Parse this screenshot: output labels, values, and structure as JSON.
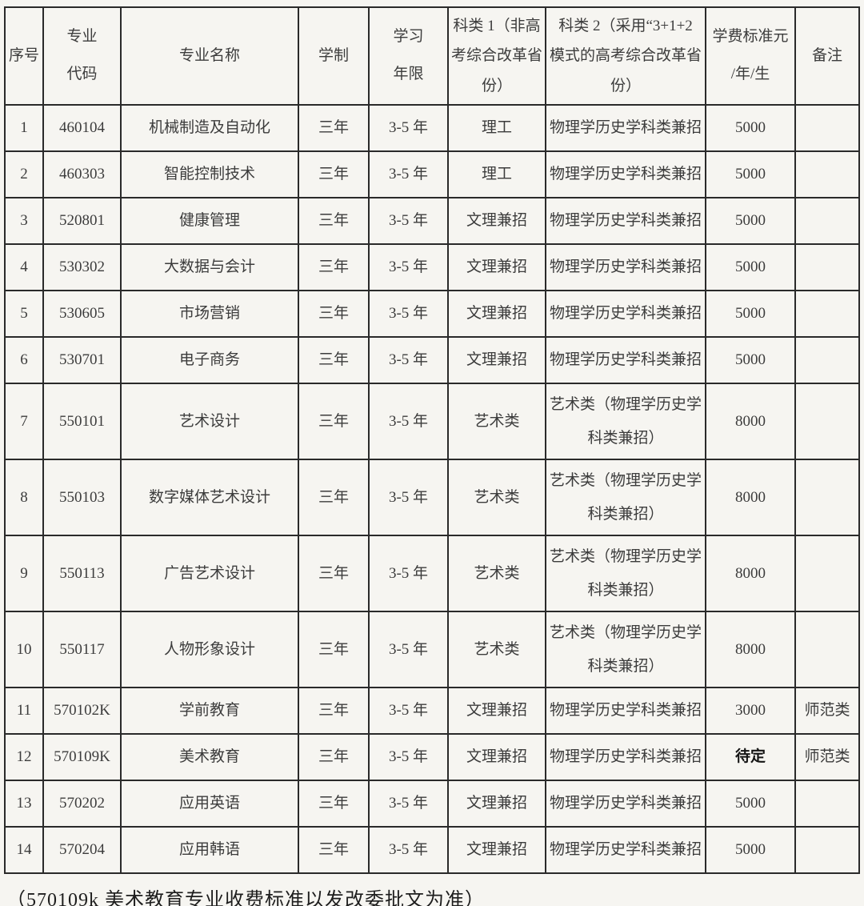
{
  "page": {
    "background": "#f6f5f1",
    "ink_color": "#2a2a2a",
    "text_color": "#3c3c3c",
    "footer_note": "（570109k 美术教育专业收费标准以发改委批文为准）"
  },
  "table": {
    "columns": [
      {
        "key": "index",
        "label": "序号"
      },
      {
        "key": "code",
        "label": "专业\n代码"
      },
      {
        "key": "name",
        "label": "专业名称"
      },
      {
        "key": "duration",
        "label": "学制"
      },
      {
        "key": "years",
        "label": "学习\n年限"
      },
      {
        "key": "category1",
        "label": "科类 1（非高\n考综合改革省\n份）"
      },
      {
        "key": "category2",
        "label": "科类 2（采用“3+1+2\n模式的高考综合改革省\n份）"
      },
      {
        "key": "fee",
        "label": "学费标准元\n/年/生"
      },
      {
        "key": "remark",
        "label": "备注"
      }
    ],
    "rows": [
      {
        "index": "1",
        "code": "460104",
        "name": "机械制造及自动化",
        "duration": "三年",
        "years": "3-5 年",
        "category1": "理工",
        "category2": "物理学历史学科类兼招",
        "fee": "5000",
        "remark": ""
      },
      {
        "index": "2",
        "code": "460303",
        "name": "智能控制技术",
        "duration": "三年",
        "years": "3-5 年",
        "category1": "理工",
        "category2": "物理学历史学科类兼招",
        "fee": "5000",
        "remark": ""
      },
      {
        "index": "3",
        "code": "520801",
        "name": "健康管理",
        "duration": "三年",
        "years": "3-5 年",
        "category1": "文理兼招",
        "category2": "物理学历史学科类兼招",
        "fee": "5000",
        "remark": ""
      },
      {
        "index": "4",
        "code": "530302",
        "name": "大数据与会计",
        "duration": "三年",
        "years": "3-5 年",
        "category1": "文理兼招",
        "category2": "物理学历史学科类兼招",
        "fee": "5000",
        "remark": ""
      },
      {
        "index": "5",
        "code": "530605",
        "name": "市场营销",
        "duration": "三年",
        "years": "3-5 年",
        "category1": "文理兼招",
        "category2": "物理学历史学科类兼招",
        "fee": "5000",
        "remark": ""
      },
      {
        "index": "6",
        "code": "530701",
        "name": "电子商务",
        "duration": "三年",
        "years": "3-5 年",
        "category1": "文理兼招",
        "category2": "物理学历史学科类兼招",
        "fee": "5000",
        "remark": ""
      },
      {
        "index": "7",
        "code": "550101",
        "name": "艺术设计",
        "duration": "三年",
        "years": "3-5 年",
        "category1": "艺术类",
        "category2": "艺术类（物理学历史学\n科类兼招）",
        "fee": "8000",
        "remark": ""
      },
      {
        "index": "8",
        "code": "550103",
        "name": "数字媒体艺术设计",
        "duration": "三年",
        "years": "3-5 年",
        "category1": "艺术类",
        "category2": "艺术类（物理学历史学\n科类兼招）",
        "fee": "8000",
        "remark": ""
      },
      {
        "index": "9",
        "code": "550113",
        "name": "广告艺术设计",
        "duration": "三年",
        "years": "3-5 年",
        "category1": "艺术类",
        "category2": "艺术类（物理学历史学\n科类兼招）",
        "fee": "8000",
        "remark": ""
      },
      {
        "index": "10",
        "code": "550117",
        "name": "人物形象设计",
        "duration": "三年",
        "years": "3-5 年",
        "category1": "艺术类",
        "category2": "艺术类（物理学历史学\n科类兼招）",
        "fee": "8000",
        "remark": ""
      },
      {
        "index": "11",
        "code": "570102K",
        "name": "学前教育",
        "duration": "三年",
        "years": "3-5 年",
        "category1": "文理兼招",
        "category2": "物理学历史学科类兼招",
        "fee": "3000",
        "remark": "师范类"
      },
      {
        "index": "12",
        "code": "570109K",
        "name": "美术教育",
        "duration": "三年",
        "years": "3-5 年",
        "category1": "文理兼招",
        "category2": "物理学历史学科类兼招",
        "fee": "待定",
        "fee_emphasis": true,
        "remark": "师范类"
      },
      {
        "index": "13",
        "code": "570202",
        "name": "应用英语",
        "duration": "三年",
        "years": "3-5 年",
        "category1": "文理兼招",
        "category2": "物理学历史学科类兼招",
        "fee": "5000",
        "remark": ""
      },
      {
        "index": "14",
        "code": "570204",
        "name": "应用韩语",
        "duration": "三年",
        "years": "3-5 年",
        "category1": "文理兼招",
        "category2": "物理学历史学科类兼招",
        "fee": "5000",
        "remark": ""
      }
    ]
  }
}
